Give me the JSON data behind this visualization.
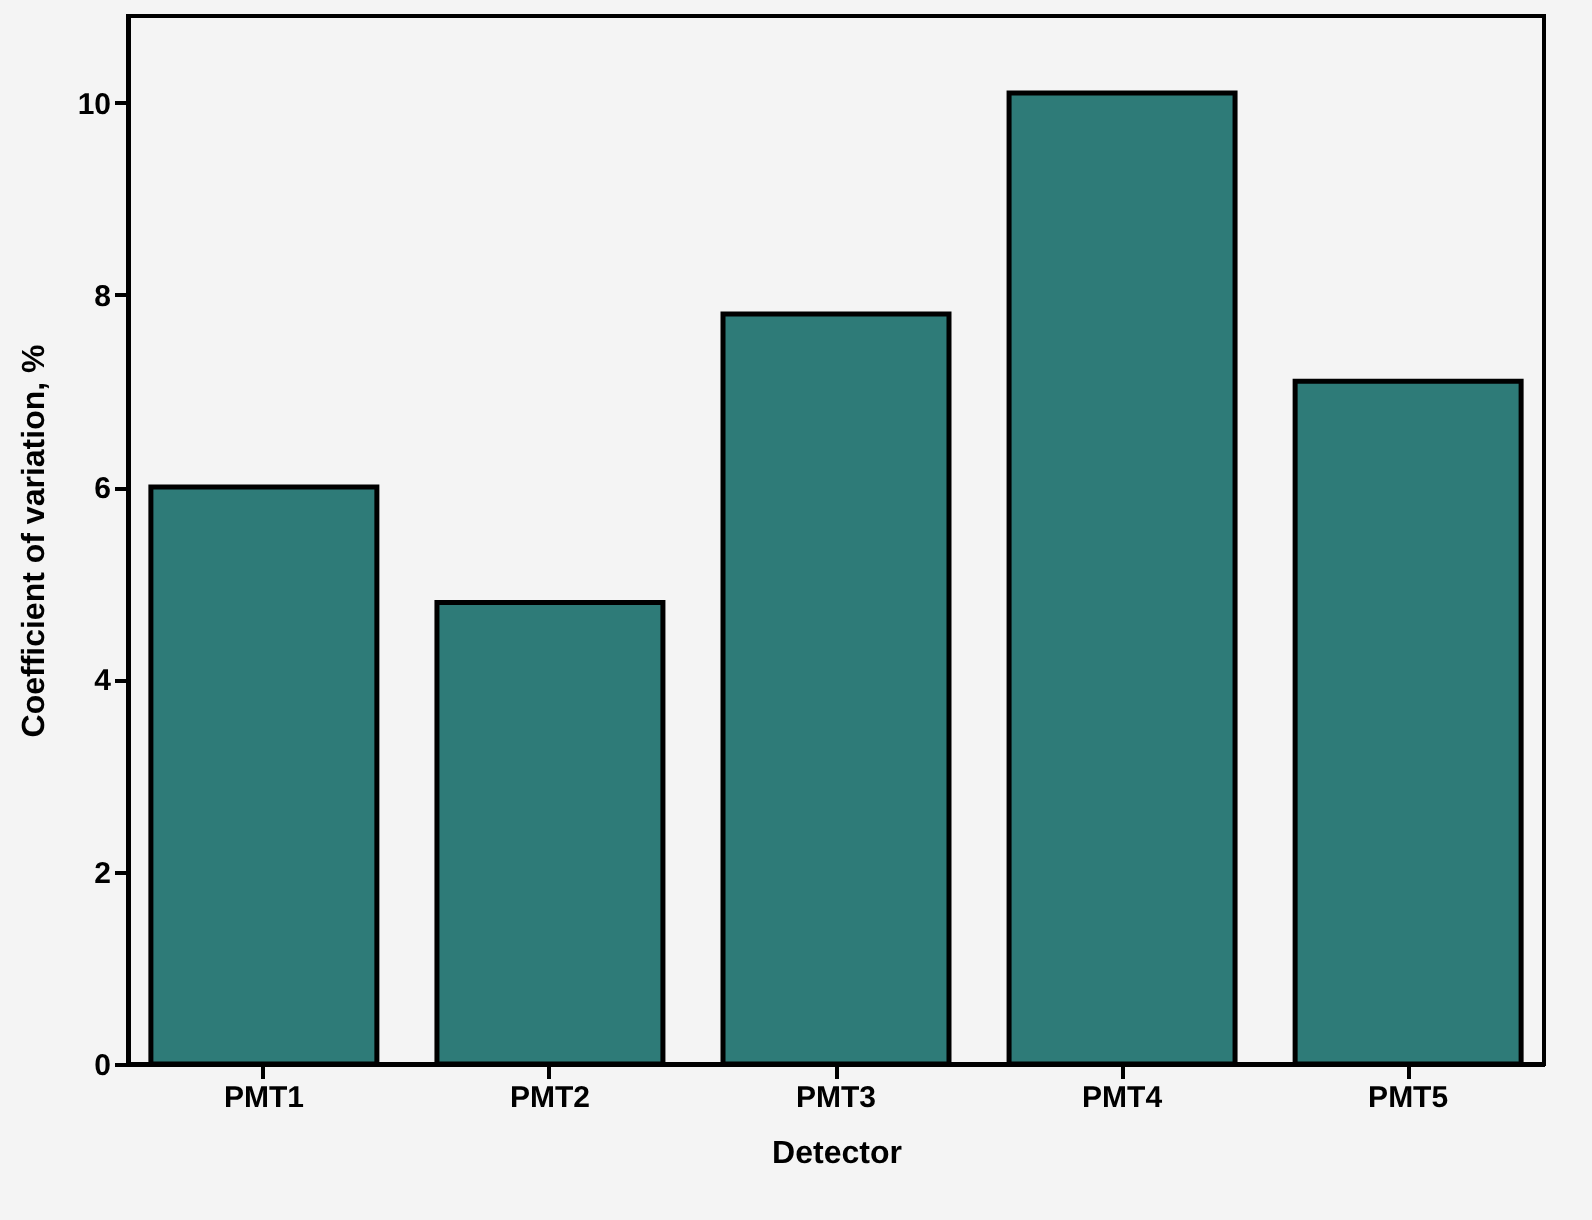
{
  "chart_data": {
    "type": "bar",
    "xlabel": "Detector",
    "ylabel": "Coefficient of variation, %",
    "categories": [
      "PMT1",
      "PMT2",
      "PMT3",
      "PMT4",
      "PMT5"
    ],
    "values": [
      6.0,
      4.8,
      7.8,
      10.1,
      7.1
    ],
    "color": "#2e7b78",
    "ylim": [
      0,
      10.9
    ],
    "yticks": [
      0,
      2,
      4,
      6,
      8,
      10
    ],
    "grid": false
  }
}
